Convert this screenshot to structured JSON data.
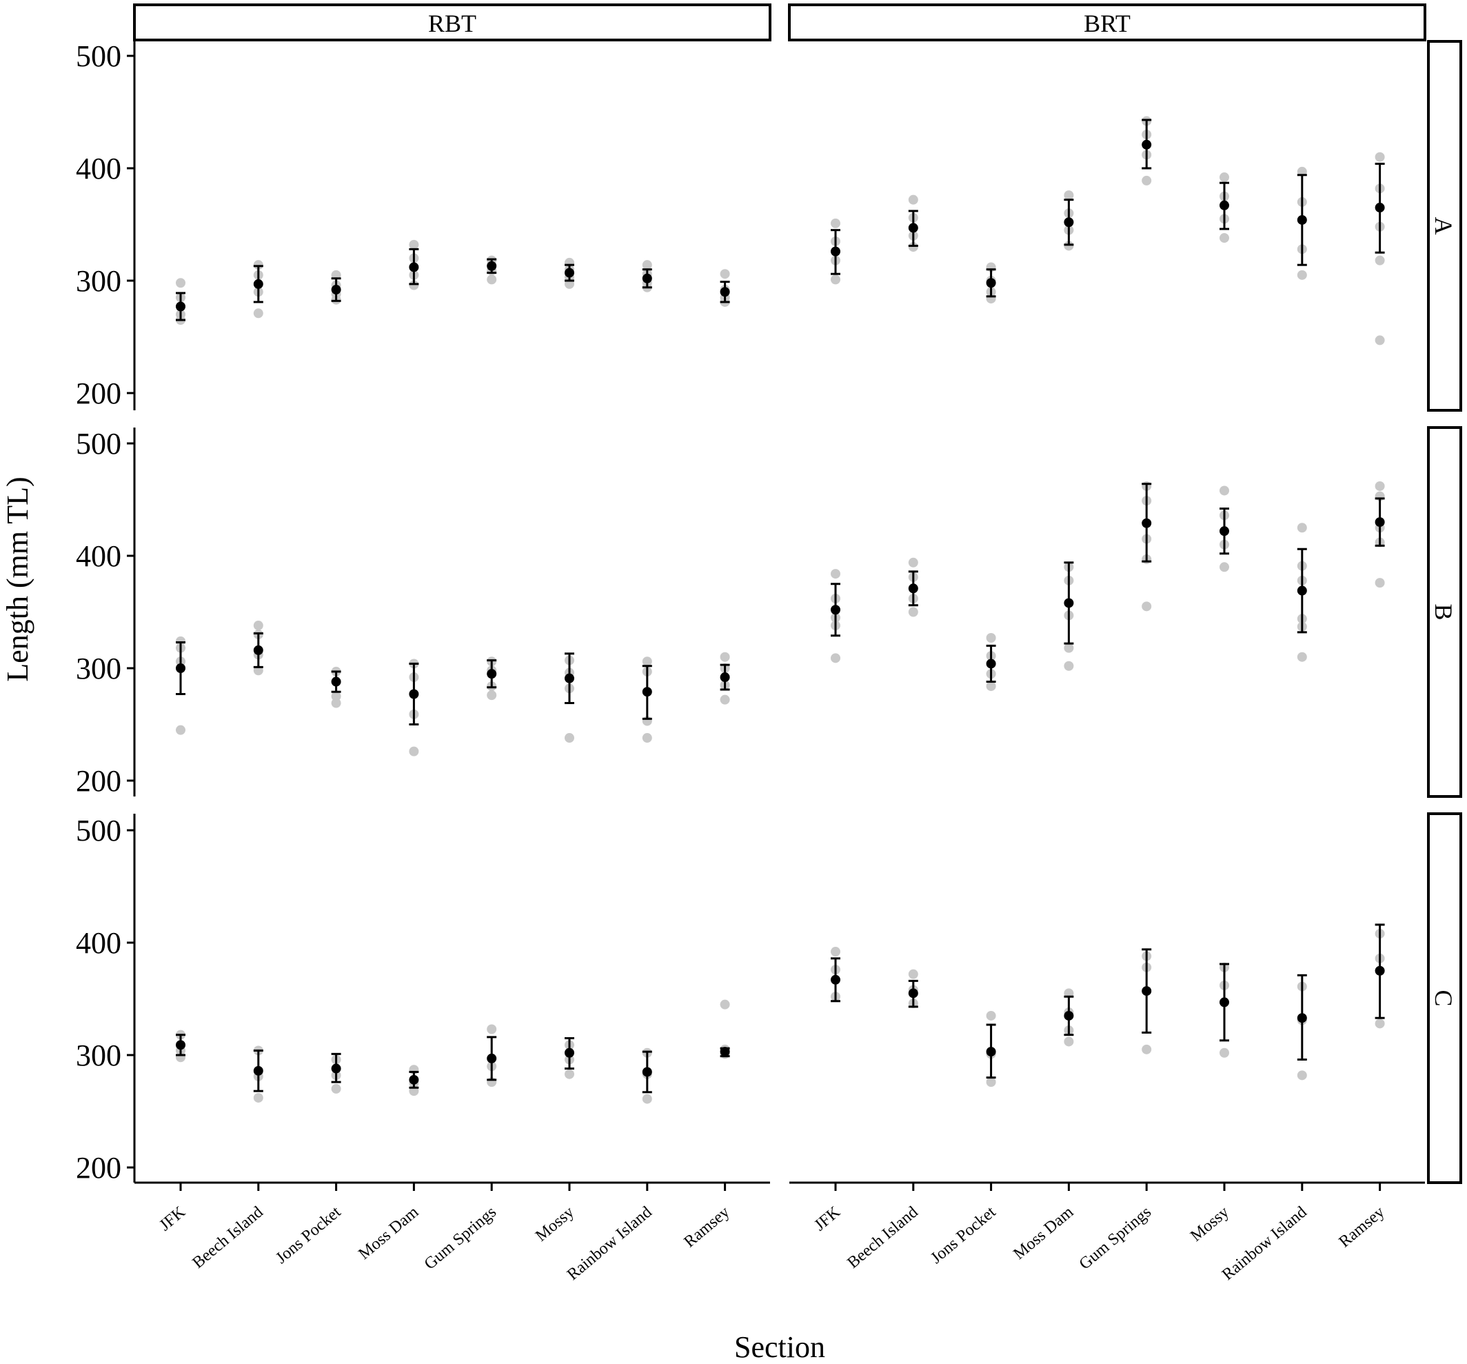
{
  "chart_data": {
    "type": "scatter",
    "description_free": true,
    "xlabel": "Section",
    "ylabel": "Length (mm TL)",
    "ylim": [
      190,
      520
    ],
    "yticks": [
      200,
      300,
      400,
      500
    ],
    "columns": [
      "RBT",
      "BRT"
    ],
    "rows": [
      "A",
      "B",
      "C"
    ],
    "categories": [
      "JFK",
      "Beech Island",
      "Jons Pocket",
      "Moss Dam",
      "Gum Springs",
      "Mossy",
      "Rainbow Island",
      "Ramsey"
    ],
    "colors": {
      "raw": "#c8c8c8",
      "mean": "#000000",
      "error": "#000000",
      "frame": "#000000"
    },
    "panels": [
      {
        "column": "RBT",
        "row": "A",
        "means": [
          277,
          297,
          292,
          312,
          313,
          307,
          302,
          290
        ],
        "lower": [
          265,
          281,
          282,
          297,
          307,
          300,
          294,
          281
        ],
        "upper": [
          289,
          313,
          302,
          328,
          319,
          314,
          310,
          299
        ],
        "raw": [
          [
            298,
            285,
            270,
            265
          ],
          [
            314,
            305,
            290,
            271
          ],
          [
            305,
            296,
            288,
            283
          ],
          [
            332,
            320,
            305,
            296
          ],
          [
            318,
            314,
            309,
            301
          ],
          [
            316,
            310,
            303,
            297
          ],
          [
            314,
            306,
            298,
            294
          ],
          [
            306,
            292,
            285,
            281
          ]
        ]
      },
      {
        "column": "BRT",
        "row": "A",
        "means": [
          326,
          347,
          298,
          352,
          421,
          367,
          354,
          365
        ],
        "lower": [
          306,
          331,
          286,
          332,
          400,
          346,
          314,
          325
        ],
        "upper": [
          345,
          362,
          310,
          372,
          443,
          387,
          394,
          404
        ],
        "raw": [
          [
            351,
            335,
            318,
            301
          ],
          [
            372,
            356,
            340,
            330
          ],
          [
            312,
            300,
            290,
            284
          ],
          [
            376,
            360,
            345,
            331
          ],
          [
            442,
            430,
            412,
            389
          ],
          [
            392,
            375,
            355,
            338
          ],
          [
            397,
            370,
            328,
            305
          ],
          [
            410,
            382,
            348,
            318,
            247
          ]
        ]
      },
      {
        "column": "RBT",
        "row": "B",
        "means": [
          300,
          316,
          288,
          277,
          295,
          291,
          279,
          292
        ],
        "lower": [
          277,
          301,
          279,
          250,
          283,
          269,
          255,
          281
        ],
        "upper": [
          323,
          331,
          297,
          304,
          307,
          313,
          302,
          303
        ],
        "raw": [
          [
            324,
            318,
            306,
            245
          ],
          [
            338,
            330,
            312,
            298
          ],
          [
            297,
            288,
            275,
            269
          ],
          [
            304,
            292,
            259,
            226
          ],
          [
            306,
            298,
            284,
            276
          ],
          [
            307,
            296,
            282,
            238
          ],
          [
            306,
            297,
            253,
            238
          ],
          [
            310,
            300,
            285,
            272
          ]
        ]
      },
      {
        "column": "BRT",
        "row": "B",
        "means": [
          352,
          371,
          304,
          358,
          429,
          422,
          369,
          430
        ],
        "lower": [
          329,
          356,
          288,
          322,
          395,
          402,
          332,
          409
        ],
        "upper": [
          375,
          386,
          320,
          394,
          464,
          442,
          406,
          451
        ],
        "raw": [
          [
            384,
            362,
            345,
            338,
            309
          ],
          [
            394,
            381,
            362,
            350
          ],
          [
            327,
            311,
            295,
            284
          ],
          [
            390,
            378,
            347,
            318,
            302
          ],
          [
            462,
            449,
            415,
            397,
            355
          ],
          [
            458,
            436,
            410,
            390
          ],
          [
            425,
            391,
            378,
            344,
            337,
            310
          ],
          [
            462,
            453,
            425,
            412,
            376
          ]
        ]
      },
      {
        "column": "RBT",
        "row": "C",
        "means": [
          309,
          286,
          288,
          278,
          297,
          302,
          285,
          303
        ],
        "lower": [
          300,
          268,
          276,
          271,
          278,
          288,
          267,
          299
        ],
        "upper": [
          318,
          304,
          301,
          285,
          316,
          315,
          303,
          306
        ],
        "raw": [
          [
            318,
            304,
            298
          ],
          [
            304,
            281,
            262
          ],
          [
            296,
            282,
            270
          ],
          [
            287,
            275,
            268
          ],
          [
            323,
            290,
            276
          ],
          [
            309,
            296,
            283
          ],
          [
            302,
            283,
            261
          ],
          [
            345,
            305,
            301
          ]
        ]
      },
      {
        "column": "BRT",
        "row": "C",
        "means": [
          367,
          355,
          303,
          335,
          357,
          347,
          333,
          375
        ],
        "lower": [
          348,
          343,
          280,
          318,
          320,
          313,
          296,
          333
        ],
        "upper": [
          386,
          366,
          327,
          352,
          394,
          381,
          371,
          416
        ],
        "raw": [
          [
            392,
            376,
            352
          ],
          [
            372,
            358,
            346
          ],
          [
            335,
            301,
            276
          ],
          [
            355,
            338,
            322,
            312
          ],
          [
            388,
            378,
            305
          ],
          [
            378,
            362,
            302
          ],
          [
            361,
            331,
            282
          ],
          [
            408,
            386,
            328
          ]
        ]
      }
    ]
  }
}
